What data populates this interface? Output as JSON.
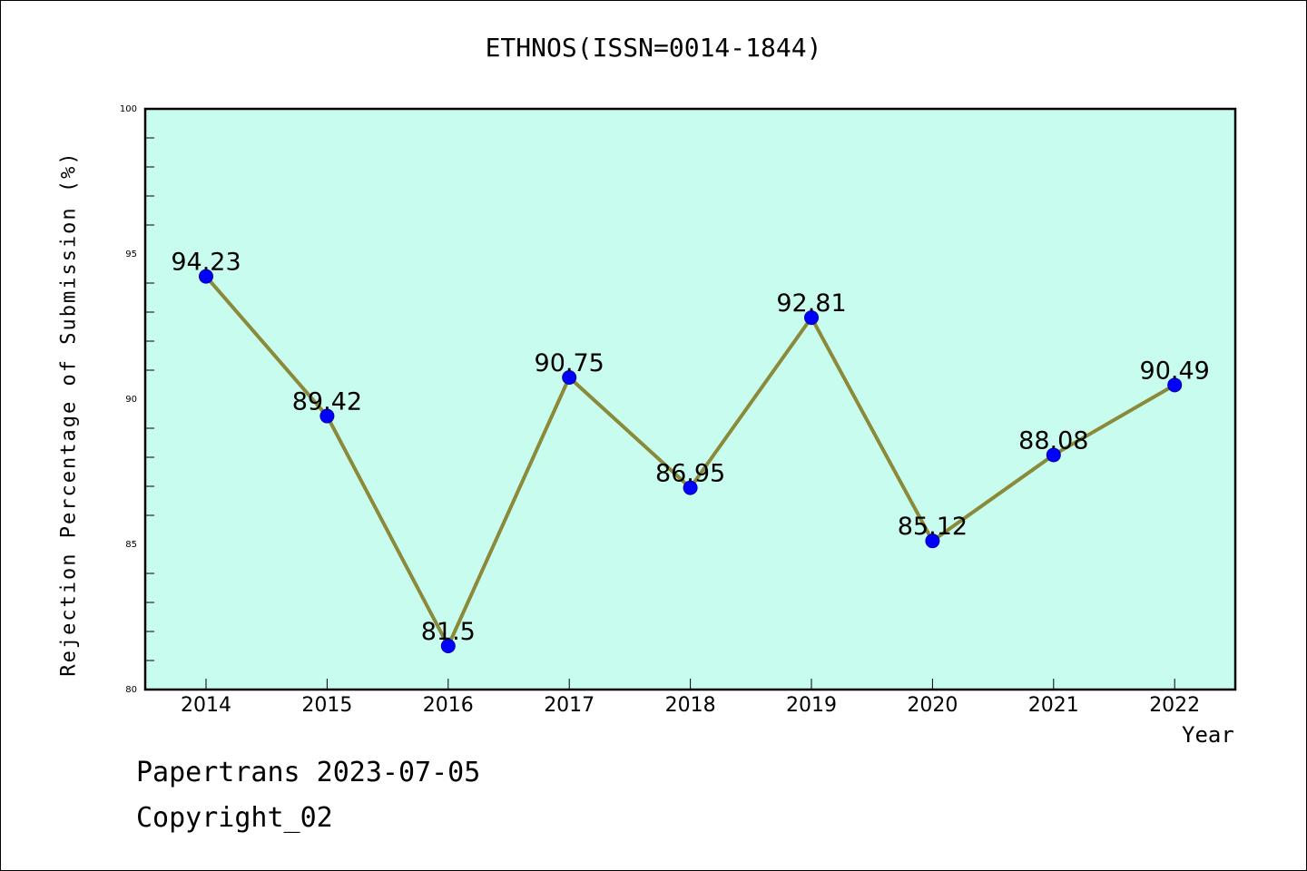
{
  "chart_data": {
    "type": "line",
    "title": "ETHNOS(ISSN=0014-1844)",
    "xlabel": "Year",
    "ylabel": "Rejection Percentage of Submission (%)",
    "categories": [
      "2014",
      "2015",
      "2016",
      "2017",
      "2018",
      "2019",
      "2020",
      "2021",
      "2022"
    ],
    "values": [
      94.23,
      89.42,
      81.5,
      90.75,
      86.95,
      92.81,
      85.12,
      88.08,
      90.49
    ],
    "value_labels": [
      "94.23",
      "89.42",
      "81.5",
      "90.75",
      "86.95",
      "92.81",
      "85.12",
      "88.08",
      "90.49"
    ],
    "ylim": [
      80,
      100
    ],
    "yticks": [
      80,
      85,
      90,
      95,
      100
    ],
    "grid": false,
    "colors": {
      "plot_background": "#c8fcee",
      "line": "#8b8a3a",
      "marker": "#0000ff"
    }
  },
  "footer": {
    "line1": "Papertrans 2023-07-05",
    "line2": "Copyright_02"
  }
}
